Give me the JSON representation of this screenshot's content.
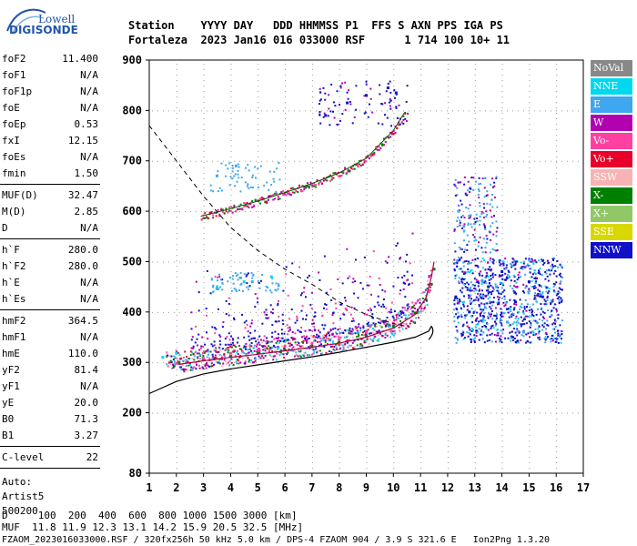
{
  "logo": {
    "line1": "Lowell",
    "line2": "DIGISONDE"
  },
  "header": {
    "line1": "Station    YYYY DAY   DDD HHMMSS P1  FFS S AXN PPS IGA PS",
    "line2": "Fortaleza  2023 Jan16 016 033000 RSF      1 714 100 10+ 11"
  },
  "params": {
    "group1": [
      {
        "label": "foF2",
        "value": "11.400"
      },
      {
        "label": "foF1",
        "value": "N/A"
      },
      {
        "label": "foF1p",
        "value": "N/A"
      },
      {
        "label": "foE",
        "value": "N/A"
      },
      {
        "label": "foEp",
        "value": "0.53"
      },
      {
        "label": "fxI",
        "value": "12.15"
      },
      {
        "label": "foEs",
        "value": "N/A"
      },
      {
        "label": "fmin",
        "value": "1.50"
      }
    ],
    "group2": [
      {
        "label": "MUF(D)",
        "value": "32.47"
      },
      {
        "label": "M(D)",
        "value": "2.85"
      },
      {
        "label": "D",
        "value": "N/A"
      }
    ],
    "group3": [
      {
        "label": "h`F",
        "value": "280.0"
      },
      {
        "label": "h`F2",
        "value": "280.0"
      },
      {
        "label": "h`E",
        "value": "N/A"
      },
      {
        "label": "h`Es",
        "value": "N/A"
      }
    ],
    "group4": [
      {
        "label": "hmF2",
        "value": "364.5"
      },
      {
        "label": "hmF1",
        "value": "N/A"
      },
      {
        "label": "hmE",
        "value": "110.0"
      },
      {
        "label": "yF2",
        "value": "81.4"
      },
      {
        "label": "yF1",
        "value": "N/A"
      },
      {
        "label": "yE",
        "value": "20.0"
      },
      {
        "label": "B0",
        "value": "71.3"
      },
      {
        "label": "B1",
        "value": "3.27"
      }
    ],
    "group5": [
      {
        "label": "C-level",
        "value": "22"
      }
    ],
    "auto": [
      "Auto:",
      "Artist5",
      "500200"
    ]
  },
  "legend": [
    {
      "label": "NoVal",
      "color": "#888888",
      "text_color": "#ffffff"
    },
    {
      "label": "NNE",
      "color": "#00d8f0",
      "text_color": "#ffffff"
    },
    {
      "label": "E",
      "color": "#3fa6f0",
      "text_color": "#ffffff"
    },
    {
      "label": "W",
      "color": "#b000b0",
      "text_color": "#ffffff"
    },
    {
      "label": "Vo-",
      "color": "#ff40a0",
      "text_color": "#ffffff"
    },
    {
      "label": "Vo+",
      "color": "#e8002a",
      "text_color": "#ffffff"
    },
    {
      "label": "SSW",
      "color": "#f7b3b3",
      "text_color": "#ffffff"
    },
    {
      "label": "X-",
      "color": "#008000",
      "text_color": "#ffffff"
    },
    {
      "label": "X+",
      "color": "#90c868",
      "text_color": "#ffffff"
    },
    {
      "label": "SSE",
      "color": "#d8d800",
      "text_color": "#ffffff"
    },
    {
      "label": "NNW",
      "color": "#1010c8",
      "text_color": "#ffffff"
    }
  ],
  "footer": {
    "line1": "D     100  200  400  600  800 1000 1500 3000 [km]",
    "line2": "MUF  11.8 11.9 12.3 13.1 14.2 15.9 20.5 32.5 [MHz]",
    "line3": "FZAOM_2023016033000.RSF / 320fx256h 50 kHz 5.0 km / DPS-4 FZAOM 904 / 3.9 S 321.6 E   Ion2Png 1.3.20"
  },
  "chart_data": {
    "type": "scatter",
    "xlim": [
      1,
      17
    ],
    "ylim": [
      80,
      900
    ],
    "x_ticks": [
      "1",
      "2",
      "3",
      "4",
      "5",
      "6",
      "7",
      "8",
      "9",
      "10",
      "11",
      "12",
      "13",
      "14",
      "15",
      "16",
      "17"
    ],
    "y_ticks": [
      "80",
      "200",
      "300",
      "400",
      "500",
      "600",
      "700",
      "800",
      "900"
    ],
    "series": [
      {
        "name": "X-",
        "color": "#008000",
        "x": [
          2.1,
          3.0,
          4.0,
          5.0,
          6.0,
          7.0,
          8.0,
          9.0,
          10.0,
          10.8,
          11.2,
          11.4,
          11.5
        ],
        "y": [
          300,
          305,
          312,
          318,
          325,
          332,
          340,
          352,
          372,
          398,
          425,
          455,
          485
        ]
      },
      {
        "name": "Vo-",
        "color": "#ff40a0",
        "x": [
          2.0,
          3.0,
          4.0,
          5.0,
          6.0,
          7.0,
          8.0,
          9.0,
          10.0,
          10.7,
          11.0,
          11.3
        ],
        "y": [
          298,
          308,
          318,
          325,
          332,
          338,
          346,
          360,
          378,
          395,
          410,
          440
        ]
      },
      {
        "name": "NNW",
        "color": "#1010c8",
        "x": [
          12.3,
          12.8,
          13.5,
          14.0,
          14.5,
          15.0,
          15.5,
          9.8,
          10.1,
          7.5,
          8.3,
          9.0
        ],
        "y": [
          430,
          400,
          450,
          480,
          420,
          460,
          430,
          845,
          835,
          790,
          815,
          830
        ]
      },
      {
        "name": "E",
        "color": "#3fa6f0",
        "x": [
          12.4,
          12.6,
          13.8,
          14.2,
          14.8,
          3.5,
          4.2,
          4.8
        ],
        "y": [
          600,
          570,
          450,
          380,
          360,
          670,
          690,
          460
        ]
      },
      {
        "name": "NNE",
        "color": "#00d8f0",
        "x": [
          1.5,
          2.0,
          3.5,
          4.5,
          5.5
        ],
        "y": [
          310,
          318,
          450,
          460,
          470
        ]
      }
    ],
    "profile_curves": {
      "lower_solid": {
        "x": [
          1.0,
          2.0,
          3.0,
          4.0,
          5.0,
          6.0,
          7.0,
          8.0,
          9.0,
          10.0,
          10.8,
          11.3,
          11.4
        ],
        "y": [
          238,
          262,
          277,
          287,
          295,
          303,
          311,
          320,
          330,
          340,
          350,
          362,
          372
        ]
      },
      "upper_fit": {
        "x": [
          2.1,
          3.0,
          4.0,
          5.0,
          6.0,
          7.0,
          8.0,
          9.0,
          10.0,
          10.8,
          11.2,
          11.4,
          11.5
        ],
        "y": [
          296,
          303,
          310,
          316,
          323,
          330,
          338,
          350,
          368,
          395,
          428,
          470,
          500
        ]
      },
      "second_trace": {
        "x": [
          2.9,
          4.0,
          5.0,
          6.0,
          7.0,
          8.0,
          9.0,
          10.0,
          10.4
        ],
        "y": [
          590,
          605,
          620,
          637,
          655,
          676,
          705,
          760,
          795
        ]
      },
      "muf_dashed": {
        "x": [
          1.0,
          1.5,
          2.0,
          3.0,
          4.0,
          5.0,
          6.0,
          7.0,
          8.0,
          9.0,
          10.0,
          10.6
        ],
        "y": [
          770,
          735,
          700,
          630,
          568,
          522,
          485,
          455,
          420,
          395,
          377,
          370
        ]
      }
    }
  }
}
